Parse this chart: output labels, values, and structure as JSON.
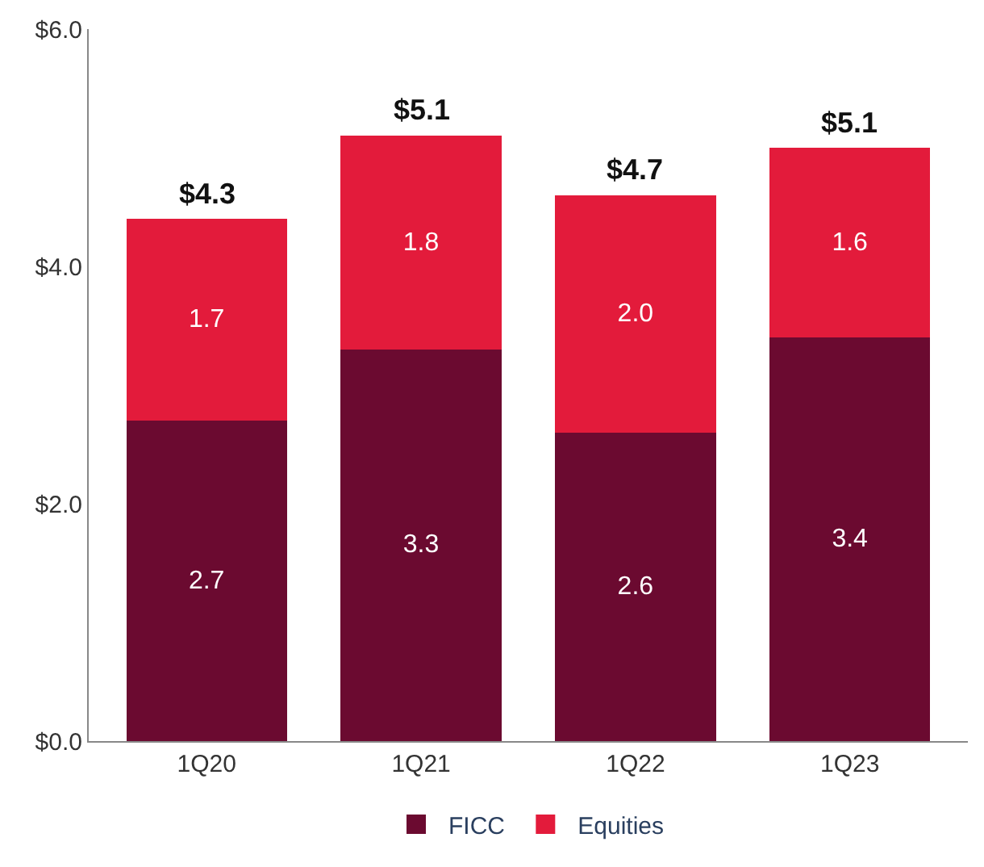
{
  "chart_data": {
    "type": "bar",
    "stacked": true,
    "categories": [
      "1Q20",
      "1Q21",
      "1Q22",
      "1Q23"
    ],
    "series": [
      {
        "name": "FICC",
        "color": "#6b0a30",
        "values": [
          2.7,
          3.3,
          2.6,
          3.4
        ],
        "value_labels": [
          "2.7",
          "3.3",
          "2.6",
          "3.4"
        ]
      },
      {
        "name": "Equities",
        "color": "#e31b3b",
        "values": [
          1.7,
          1.8,
          2.0,
          1.6
        ],
        "value_labels": [
          "1.7",
          "1.8",
          "2.0",
          "1.6"
        ]
      }
    ],
    "totals": [
      "$4.3",
      "$5.1",
      "$4.7",
      "$5.1"
    ],
    "ylim": [
      0,
      6
    ],
    "yticks": [
      {
        "value": 0,
        "label": "$0.0"
      },
      {
        "value": 2,
        "label": "$2.0"
      },
      {
        "value": 4,
        "label": "$4.0"
      },
      {
        "value": 6,
        "label": "$6.0"
      }
    ],
    "legend": "bottom"
  }
}
